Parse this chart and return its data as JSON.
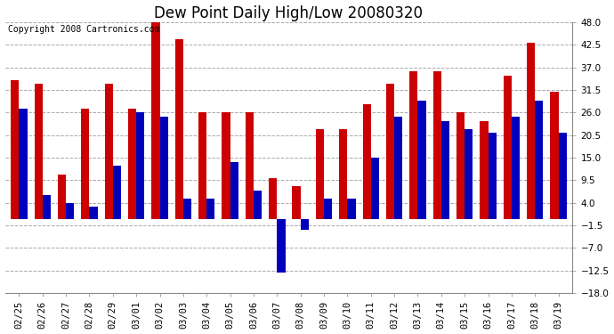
{
  "title": "Dew Point Daily High/Low 20080320",
  "copyright": "Copyright 2008 Cartronics.com",
  "dates": [
    "02/25",
    "02/26",
    "02/27",
    "02/28",
    "02/29",
    "03/01",
    "03/02",
    "03/03",
    "03/04",
    "03/05",
    "03/06",
    "03/07",
    "03/08",
    "03/09",
    "03/10",
    "03/11",
    "03/12",
    "03/13",
    "03/14",
    "03/15",
    "03/16",
    "03/17",
    "03/18",
    "03/19"
  ],
  "highs": [
    34.0,
    33.0,
    11.0,
    27.0,
    33.0,
    27.0,
    48.0,
    44.0,
    26.0,
    26.0,
    26.0,
    10.0,
    8.0,
    22.0,
    22.0,
    28.0,
    33.0,
    36.0,
    36.0,
    26.0,
    24.0,
    35.0,
    43.0,
    31.0
  ],
  "lows": [
    27.0,
    6.0,
    4.0,
    3.0,
    13.0,
    26.0,
    25.0,
    5.0,
    5.0,
    14.0,
    7.0,
    -13.0,
    -2.5,
    5.0,
    5.0,
    15.0,
    25.0,
    29.0,
    24.0,
    22.0,
    21.0,
    25.0,
    29.0,
    21.0
  ],
  "high_color": "#cc0000",
  "low_color": "#0000bb",
  "background_color": "#ffffff",
  "plot_background": "#ffffff",
  "grid_color": "#aaaaaa",
  "ylim": [
    -18.0,
    48.0
  ],
  "yticks": [
    -18.0,
    -12.5,
    -7.0,
    -1.5,
    4.0,
    9.5,
    15.0,
    20.5,
    26.0,
    31.5,
    37.0,
    42.5,
    48.0
  ],
  "title_fontsize": 12,
  "tick_fontsize": 7.5,
  "copyright_fontsize": 7,
  "bar_width": 0.35
}
